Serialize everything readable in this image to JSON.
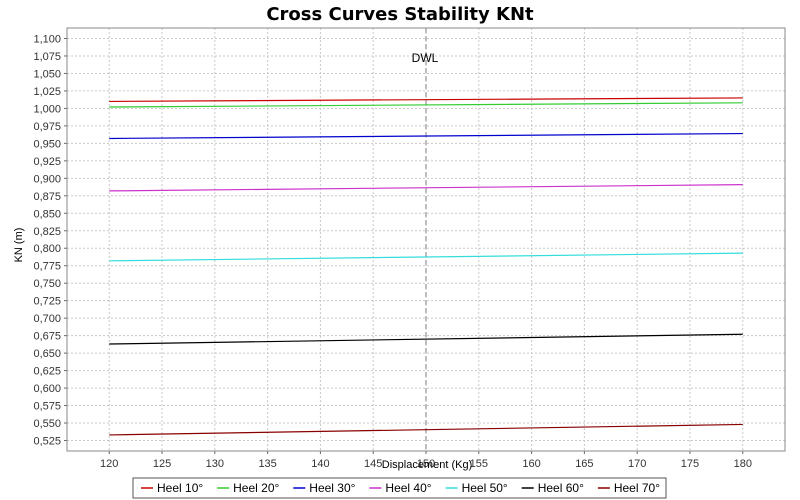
{
  "chart_data": {
    "type": "line",
    "title": "Cross Curves Stability KNt",
    "xlabel": "Displacement (Kg)",
    "ylabel": "KN (m)",
    "xlim": [
      116,
      184
    ],
    "ylim": [
      0.51,
      1.115
    ],
    "x_ticks": [
      "120",
      "125",
      "130",
      "135",
      "140",
      "145",
      "150",
      "155",
      "160",
      "165",
      "170",
      "175",
      "180"
    ],
    "y_ticks": [
      "0,525",
      "0,550",
      "0,575",
      "0,600",
      "0,625",
      "0,650",
      "0,675",
      "0,700",
      "0,725",
      "0,750",
      "0,775",
      "0,800",
      "0,825",
      "0,850",
      "0,875",
      "0,900",
      "0,925",
      "0,950",
      "0,975",
      "1,000",
      "1,025",
      "1,050",
      "1,075",
      "1,100"
    ],
    "grid": true,
    "legend_position": "bottom",
    "series": [
      {
        "name": "Heel 10°",
        "color": "#cc0000",
        "x": [
          120,
          180
        ],
        "values": [
          1.01,
          1.015
        ]
      },
      {
        "name": "Heel 20°",
        "color": "#33cc33",
        "x": [
          120,
          180
        ],
        "values": [
          1.002,
          1.008
        ]
      },
      {
        "name": "Heel 30°",
        "color": "#0000cc",
        "x": [
          120,
          180
        ],
        "values": [
          0.957,
          0.964
        ]
      },
      {
        "name": "Heel 40°",
        "color": "#cc33cc",
        "x": [
          120,
          180
        ],
        "values": [
          0.882,
          0.891
        ]
      },
      {
        "name": "Heel 50°",
        "color": "#33dddd",
        "x": [
          120,
          180
        ],
        "values": [
          0.782,
          0.793
        ]
      },
      {
        "name": "Heel 60°",
        "color": "#000000",
        "x": [
          120,
          180
        ],
        "values": [
          0.663,
          0.677
        ]
      },
      {
        "name": "Heel 70°",
        "color": "#880000",
        "x": [
          120,
          180
        ],
        "values": [
          0.533,
          0.548
        ]
      }
    ],
    "annotations": [
      {
        "label": "DWL",
        "x": 150,
        "type": "vertical-line",
        "color": "#aaaaaa"
      }
    ]
  }
}
